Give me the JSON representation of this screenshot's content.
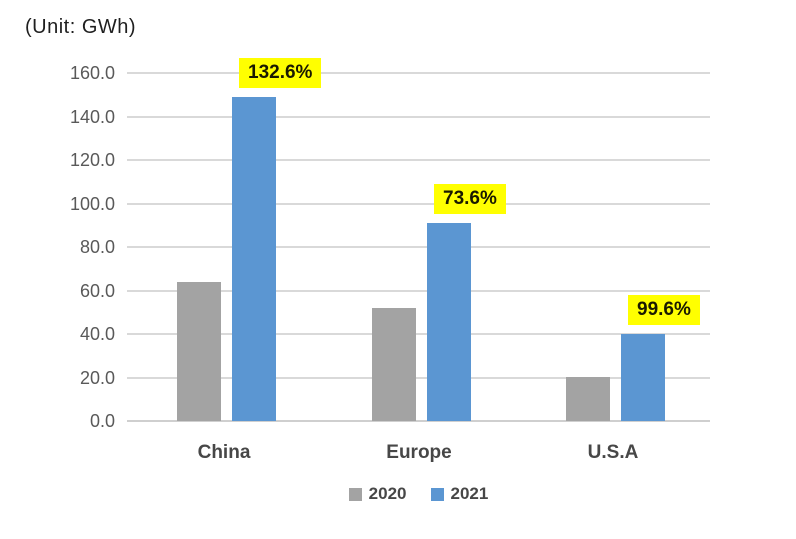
{
  "chart_data": {
    "type": "bar",
    "unit_label": "(Unit: GWh)",
    "categories": [
      "China",
      "Europe",
      "U.S.A"
    ],
    "series": [
      {
        "name": "2020",
        "color": "#a3a3a3",
        "values": [
          64,
          52,
          20
        ]
      },
      {
        "name": "2021",
        "color": "#5b96d2",
        "values": [
          149,
          91,
          40
        ]
      }
    ],
    "growth_labels": [
      "132.6%",
      "73.6%",
      "99.6%"
    ],
    "growth_label_bg": "#ffff00",
    "y_ticks": [
      "160.0",
      "140.0",
      "120.0",
      "100.0",
      "80.0",
      "60.0",
      "40.0",
      "20.0",
      "0.0"
    ],
    "ylim": [
      0,
      160
    ],
    "grid": true,
    "legend_position": "bottom",
    "gridline_color": "#d9d9d9"
  }
}
